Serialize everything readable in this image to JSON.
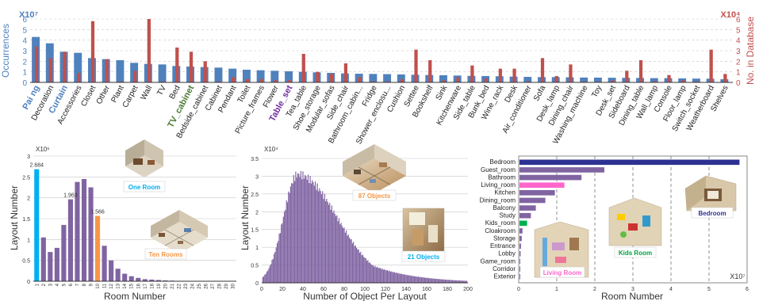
{
  "colors": {
    "occ": "#4f81bd",
    "db": "#c0504d",
    "purple": "#8064a2",
    "cyan": "#00b0f0",
    "orange": "#f79646",
    "navy": "#2e3192",
    "magenta": "#ff66cc",
    "green": "#00b050",
    "grid": "#888888"
  },
  "chart_data": [
    {
      "type": "bar",
      "ylabel": "Occurrences",
      "ylabel_right": "No. in Database",
      "y_scale": "X10⁷",
      "y_scale_right": "X10⁴",
      "ylim": [
        0,
        6
      ],
      "yticks": [
        "0",
        "1",
        "2",
        "3",
        "4",
        "5",
        "6"
      ],
      "categories": [
        "Painting",
        "Decoration",
        "Curtain",
        "Accessories",
        "Closet",
        "Other",
        "Plant",
        "Carpet",
        "Wall",
        "TV",
        "Bed",
        "TV_cabinet",
        "Bedside_cabinet",
        "Cabinet",
        "Pendant",
        "Toilet",
        "Picture_frames",
        "Flower",
        "Table_set",
        "Tea_table",
        "Shoe_storage",
        "Modular_sofas",
        "Side_chair",
        "Bathroom_cabin...",
        "Fridge",
        "Shower_enclosu...",
        "Cushion",
        "Settee",
        "Bookshelf",
        "Sink",
        "Kitchenware",
        "Side_table",
        "Bunk_bed",
        "Wine_rack",
        "Desk",
        "Air_conditioner",
        "Sofa",
        "Desk_lamp",
        "Dining_chair",
        "Washing_machine",
        "Toy",
        "Desk_set",
        "Sideboard",
        "Dining_table",
        "Wall_lamp",
        "Console",
        "Floor_lamp",
        "Switch_socket",
        "Weatherboard",
        "Shelves"
      ],
      "category_labels": [
        "Pai ng",
        "Decoration",
        "Curtain",
        "Accessories",
        "Closet",
        "Other",
        "Plant",
        "Carpet",
        "Wall",
        "TV",
        "Bed",
        "TV_cabinet",
        "Bedside_cabinet",
        "Cabinet",
        "Pendant",
        "Toilet",
        "Picture_frames",
        "Flower",
        "Table_set",
        "Tea_table",
        "Shoe_storage",
        "Modular_sofas",
        "Side_chair",
        "Bathroom_cabin...",
        "Fridge",
        "Shower_enclosu...",
        "Cushion",
        "Settee",
        "Bookshelf",
        "Sink",
        "Kitchenware",
        "Side_table",
        "Bunk_bed",
        "Wine_rack",
        "Desk",
        "Air_conditioner",
        "Sofa",
        "Desk_lamp",
        "Dining_chair",
        "Washing_machine",
        "Toy",
        "Desk_set",
        "Sideboard",
        "Dining_table",
        "Wall_lamp",
        "Console",
        "Floor_lamp",
        "Switch_socket",
        "Weatherboard",
        "Shelves"
      ],
      "highlight_labels": {
        "Pai ng": "#4f81bd",
        "Curtain": "#4f81bd",
        "TV_cabinet": "#4a7a32",
        "Table_set": "#7030a0"
      },
      "series": [
        {
          "name": "Occurrences",
          "values": [
            4.3,
            3.7,
            2.9,
            2.8,
            2.3,
            2.2,
            2.1,
            1.85,
            1.75,
            1.7,
            1.55,
            1.5,
            1.45,
            1.4,
            1.3,
            1.2,
            1.15,
            1.1,
            1.05,
            1.0,
            0.95,
            0.9,
            0.85,
            0.82,
            0.8,
            0.78,
            0.75,
            0.72,
            0.7,
            0.68,
            0.65,
            0.62,
            0.6,
            0.58,
            0.55,
            0.52,
            0.5,
            0.5,
            0.48,
            0.46,
            0.45,
            0.44,
            0.43,
            0.42,
            0.4,
            0.4,
            0.38,
            0.36,
            0.35,
            0.3
          ]
        },
        {
          "name": "No. in Database",
          "values": [
            3.4,
            2.3,
            2.9,
            0.9,
            5.8,
            2.2,
            0.1,
            1.1,
            6.0,
            0.1,
            3.3,
            2.9,
            2.0,
            0.1,
            0.5,
            0.3,
            0.3,
            0.2,
            0.2,
            2.7,
            1.0,
            0.8,
            1.8,
            0.5,
            0.1,
            0.1,
            0.3,
            3.1,
            2.1,
            0.2,
            0.5,
            1.6,
            0.4,
            1.3,
            1.3,
            0.1,
            2.3,
            0.6,
            1.7,
            0.1,
            0.1,
            0.2,
            1.1,
            2.1,
            0.1,
            0.7,
            0.2,
            0.1,
            3.1,
            0.8
          ]
        }
      ]
    },
    {
      "type": "bar",
      "xlabel": "Room Number",
      "ylabel": "Layout Number",
      "y_scale": "X10⁶",
      "ylim": [
        0,
        3
      ],
      "yticks": [
        "0",
        "0.5",
        "1",
        "1.5",
        "2",
        "2.5",
        "3"
      ],
      "categories": [
        "1",
        "2",
        "3",
        "4",
        "5",
        "6",
        "7",
        "8",
        "9",
        "10",
        "11",
        "12",
        "13",
        "14",
        "15",
        "16",
        "17",
        "18",
        "19",
        "20",
        "21",
        "22",
        "23",
        "24",
        "25",
        "26",
        "27",
        "28",
        "29",
        "30"
      ],
      "values": [
        2.684,
        1.05,
        0.7,
        0.8,
        1.35,
        1.963,
        2.38,
        2.45,
        2.25,
        1.566,
        0.85,
        0.5,
        0.3,
        0.18,
        0.12,
        0.08,
        0.05,
        0.04,
        0.03,
        0.02,
        0.015,
        0.01,
        0.01,
        0.008,
        0.005,
        0.005,
        0.004,
        0.003,
        0.002,
        0.002
      ],
      "data_labels": {
        "1": "2.684",
        "6": "1.963",
        "10": "1.566"
      },
      "highlight": {
        "1": "cyan",
        "10": "orange"
      },
      "annotations": [
        "One Room",
        "Ten Rooms"
      ]
    },
    {
      "type": "bar",
      "xlabel": "Number of Object Per Layout",
      "ylabel": "Layout Number",
      "y_scale": "X10⁴",
      "ylim": [
        0,
        3.5
      ],
      "yticks": [
        "0",
        "0.5",
        "1",
        "1.5",
        "2",
        "2.5",
        "3",
        "3.5"
      ],
      "xlim": [
        0,
        200
      ],
      "xticks": [
        "0",
        "20",
        "40",
        "60",
        "80",
        "100",
        "120",
        "140",
        "160",
        "180",
        "200"
      ],
      "distribution": {
        "peak_x": 35,
        "peak_y": 3.05
      },
      "annotations": [
        "87 Objects",
        "21 Objects"
      ]
    },
    {
      "type": "bar",
      "orientation": "horizontal",
      "xlabel": "Room Number",
      "x_scale": "X10⁷",
      "xlim": [
        0,
        6
      ],
      "xticks": [
        "0",
        "1",
        "2",
        "3",
        "4",
        "5",
        "6"
      ],
      "categories": [
        "Bedroom",
        "Guest_room",
        "Bathroom",
        "Living_room",
        "Kitchen",
        "Dining_room",
        "Balcony",
        "Study",
        "Kids_room",
        "Cloakroom",
        "Storage",
        "Entrance",
        "Lobby",
        "Game_room",
        "Corridor",
        "Exterior"
      ],
      "values": [
        5.8,
        2.25,
        1.65,
        1.2,
        0.95,
        0.7,
        0.45,
        0.32,
        0.22,
        0.1,
        0.08,
        0.06,
        0.05,
        0.04,
        0.03,
        0.02
      ],
      "highlight": {
        "Bedroom": "navy",
        "Living_room": "magenta",
        "Kids_room": "green"
      },
      "annotations": [
        "Bedroom",
        "Kids Room",
        "Living Room"
      ]
    }
  ]
}
